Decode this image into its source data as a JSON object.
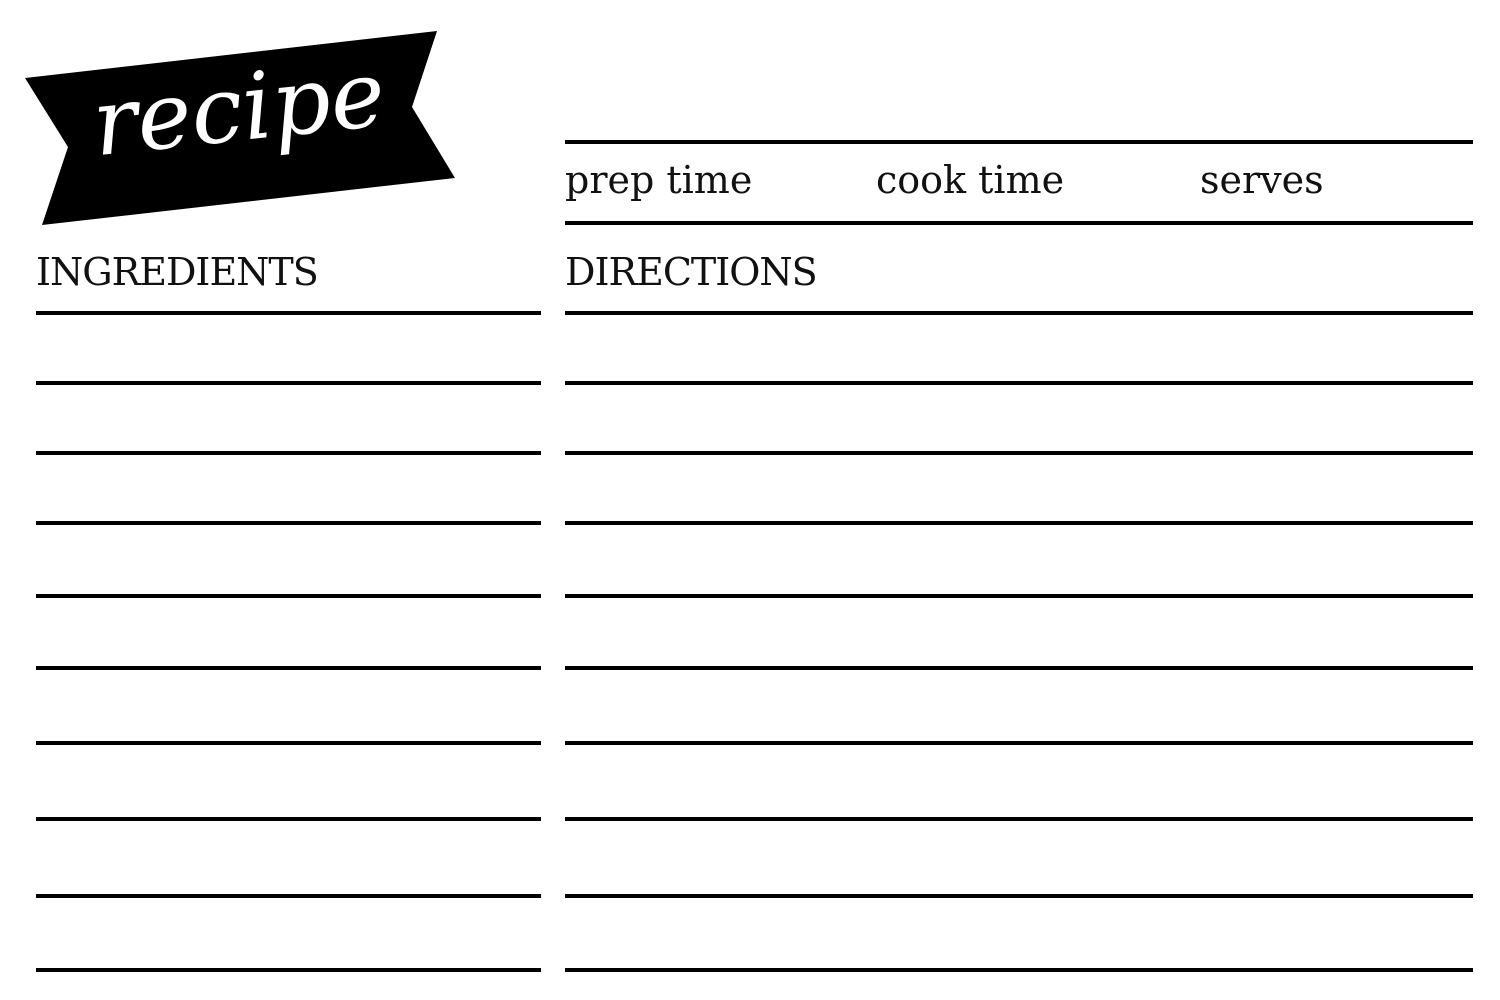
{
  "banner": {
    "title": "recipe",
    "color": "#000000",
    "text_color": "#ffffff"
  },
  "meta": {
    "prep_time": "prep time",
    "cook_time": "cook time",
    "serves": "serves"
  },
  "sections": {
    "ingredients": "INGREDIENTS",
    "directions": "DIRECTIONS"
  }
}
